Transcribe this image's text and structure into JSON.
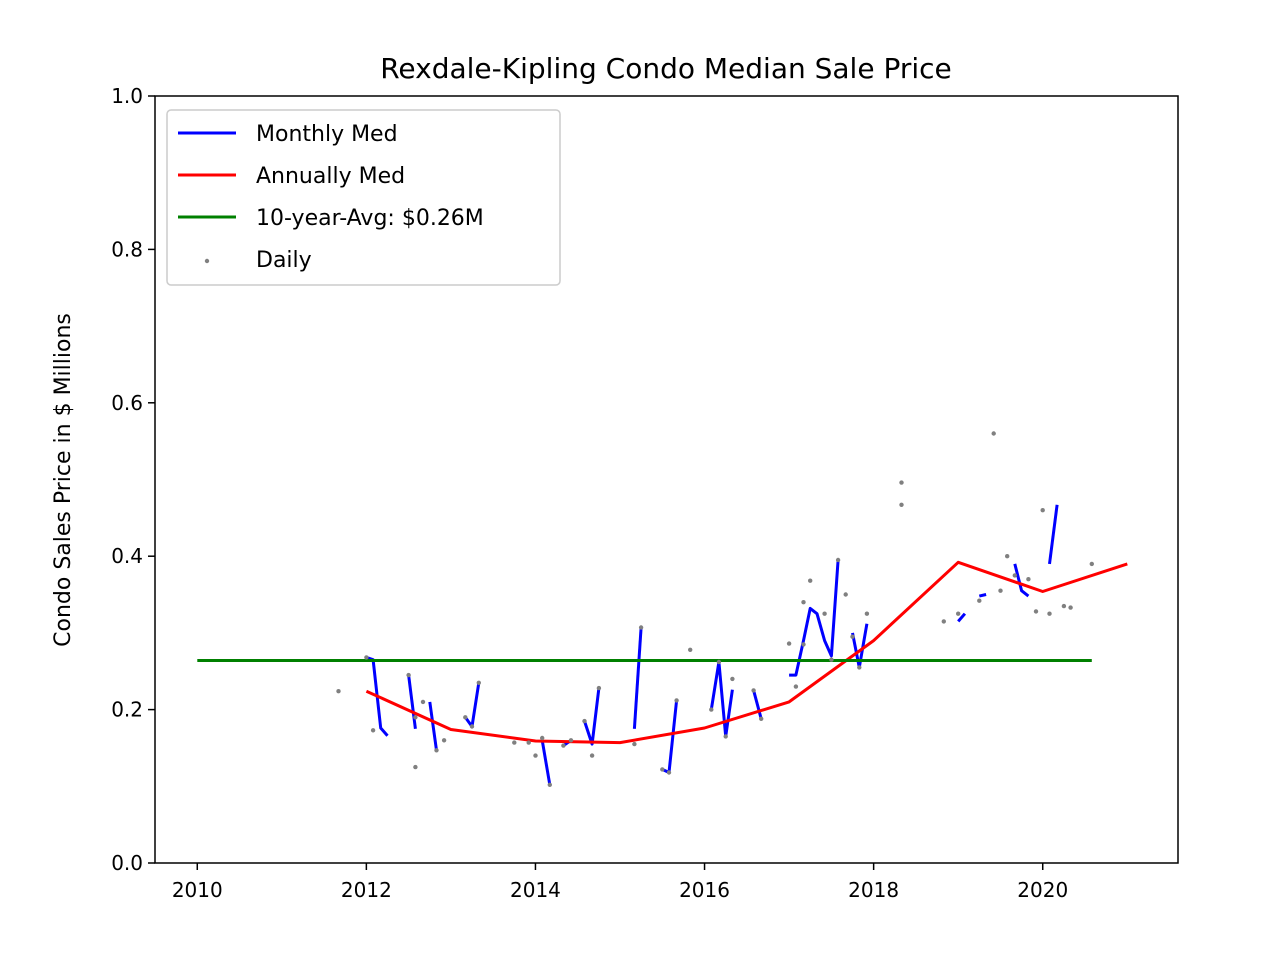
{
  "chart_data": {
    "type": "line",
    "title": "Rexdale-Kipling Condo Median Sale Price",
    "xlabel": "",
    "ylabel": "Condo Sales Price in $ Millions",
    "xlim": [
      2009.5,
      2021.6
    ],
    "ylim": [
      0.0,
      1.0
    ],
    "x_ticks": [
      2010,
      2012,
      2014,
      2016,
      2018,
      2020
    ],
    "y_ticks": [
      "0.0",
      "0.2",
      "0.4",
      "0.6",
      "0.8",
      "1.0"
    ],
    "grid": false,
    "legend_position": "top-left",
    "colors": {
      "monthly": "#0000ff",
      "annual": "#ff0000",
      "avg": "#008000",
      "daily": "#808080"
    },
    "legend": [
      {
        "label": "Monthly Med",
        "kind": "line",
        "color": "#0000ff"
      },
      {
        "label": "Annually Med",
        "kind": "line",
        "color": "#ff0000"
      },
      {
        "label": "10-year-Avg: $0.26M",
        "kind": "line",
        "color": "#008000"
      },
      {
        "label": "Daily",
        "kind": "dot",
        "color": "#808080"
      }
    ],
    "series": [
      {
        "name": "Monthly Med",
        "segments": [
          [
            [
              2012.0,
              0.268
            ],
            [
              2012.08,
              0.265
            ],
            [
              2012.17,
              0.176
            ],
            [
              2012.25,
              0.166
            ]
          ],
          [
            [
              2012.5,
              0.245
            ],
            [
              2012.58,
              0.175
            ]
          ],
          [
            [
              2012.75,
              0.21
            ],
            [
              2012.83,
              0.147
            ]
          ],
          [
            [
              2013.17,
              0.19
            ],
            [
              2013.25,
              0.178
            ],
            [
              2013.33,
              0.235
            ]
          ],
          [
            [
              2014.08,
              0.16
            ],
            [
              2014.17,
              0.102
            ]
          ],
          [
            [
              2014.33,
              0.153
            ],
            [
              2014.42,
              0.16
            ]
          ],
          [
            [
              2014.58,
              0.185
            ],
            [
              2014.67,
              0.155
            ],
            [
              2014.75,
              0.228
            ]
          ],
          [
            [
              2015.17,
              0.175
            ],
            [
              2015.25,
              0.307
            ]
          ],
          [
            [
              2015.5,
              0.122
            ],
            [
              2015.58,
              0.118
            ],
            [
              2015.67,
              0.212
            ]
          ],
          [
            [
              2016.08,
              0.2
            ],
            [
              2016.17,
              0.262
            ],
            [
              2016.25,
              0.165
            ],
            [
              2016.33,
              0.226
            ]
          ],
          [
            [
              2016.58,
              0.225
            ],
            [
              2016.67,
              0.188
            ]
          ],
          [
            [
              2017.0,
              0.245
            ],
            [
              2017.08,
              0.245
            ],
            [
              2017.17,
              0.29
            ],
            [
              2017.25,
              0.332
            ],
            [
              2017.33,
              0.325
            ],
            [
              2017.42,
              0.29
            ],
            [
              2017.5,
              0.27
            ],
            [
              2017.58,
              0.395
            ]
          ],
          [
            [
              2017.75,
              0.3
            ],
            [
              2017.83,
              0.255
            ],
            [
              2017.92,
              0.312
            ]
          ],
          [
            [
              2019.0,
              0.315
            ],
            [
              2019.08,
              0.325
            ]
          ],
          [
            [
              2019.25,
              0.348
            ],
            [
              2019.33,
              0.35
            ]
          ],
          [
            [
              2019.67,
              0.39
            ],
            [
              2019.75,
              0.355
            ],
            [
              2019.83,
              0.348
            ]
          ],
          [
            [
              2020.08,
              0.39
            ],
            [
              2020.17,
              0.467
            ]
          ]
        ]
      },
      {
        "name": "Annually Med",
        "points": [
          [
            2012.0,
            0.224
          ],
          [
            2013.0,
            0.174
          ],
          [
            2014.0,
            0.159
          ],
          [
            2015.0,
            0.157
          ],
          [
            2016.0,
            0.176
          ],
          [
            2017.0,
            0.21
          ],
          [
            2018.0,
            0.29
          ],
          [
            2019.0,
            0.392
          ],
          [
            2020.0,
            0.354
          ],
          [
            2021.0,
            0.39
          ]
        ]
      },
      {
        "name": "10-year-Avg: $0.26M",
        "points": [
          [
            2010.0,
            0.264
          ],
          [
            2020.58,
            0.264
          ]
        ]
      },
      {
        "name": "Daily",
        "points": [
          [
            2011.67,
            0.224
          ],
          [
            2012.0,
            0.268
          ],
          [
            2012.08,
            0.173
          ],
          [
            2012.5,
            0.245
          ],
          [
            2012.58,
            0.125
          ],
          [
            2012.58,
            0.19
          ],
          [
            2012.67,
            0.21
          ],
          [
            2012.83,
            0.147
          ],
          [
            2012.92,
            0.16
          ],
          [
            2013.17,
            0.19
          ],
          [
            2013.25,
            0.178
          ],
          [
            2013.33,
            0.235
          ],
          [
            2013.75,
            0.157
          ],
          [
            2013.92,
            0.157
          ],
          [
            2014.0,
            0.14
          ],
          [
            2014.08,
            0.163
          ],
          [
            2014.17,
            0.102
          ],
          [
            2014.33,
            0.153
          ],
          [
            2014.42,
            0.16
          ],
          [
            2014.58,
            0.185
          ],
          [
            2014.67,
            0.14
          ],
          [
            2014.75,
            0.228
          ],
          [
            2015.17,
            0.155
          ],
          [
            2015.25,
            0.307
          ],
          [
            2015.5,
            0.122
          ],
          [
            2015.58,
            0.118
          ],
          [
            2015.67,
            0.212
          ],
          [
            2015.83,
            0.278
          ],
          [
            2016.08,
            0.2
          ],
          [
            2016.17,
            0.262
          ],
          [
            2016.25,
            0.165
          ],
          [
            2016.33,
            0.24
          ],
          [
            2016.58,
            0.225
          ],
          [
            2016.67,
            0.188
          ],
          [
            2017.0,
            0.286
          ],
          [
            2017.08,
            0.23
          ],
          [
            2017.17,
            0.285
          ],
          [
            2017.17,
            0.34
          ],
          [
            2017.25,
            0.368
          ],
          [
            2017.42,
            0.325
          ],
          [
            2017.5,
            0.265
          ],
          [
            2017.58,
            0.395
          ],
          [
            2017.67,
            0.35
          ],
          [
            2017.75,
            0.295
          ],
          [
            2017.83,
            0.255
          ],
          [
            2017.92,
            0.325
          ],
          [
            2018.33,
            0.496
          ],
          [
            2018.33,
            0.467
          ],
          [
            2018.83,
            0.315
          ],
          [
            2019.0,
            0.325
          ],
          [
            2019.25,
            0.342
          ],
          [
            2019.42,
            0.56
          ],
          [
            2019.5,
            0.355
          ],
          [
            2019.58,
            0.4
          ],
          [
            2019.67,
            0.375
          ],
          [
            2019.83,
            0.37
          ],
          [
            2019.92,
            0.328
          ],
          [
            2020.0,
            0.46
          ],
          [
            2020.08,
            0.325
          ],
          [
            2020.25,
            0.335
          ],
          [
            2020.33,
            0.333
          ],
          [
            2020.58,
            0.39
          ]
        ]
      }
    ]
  }
}
